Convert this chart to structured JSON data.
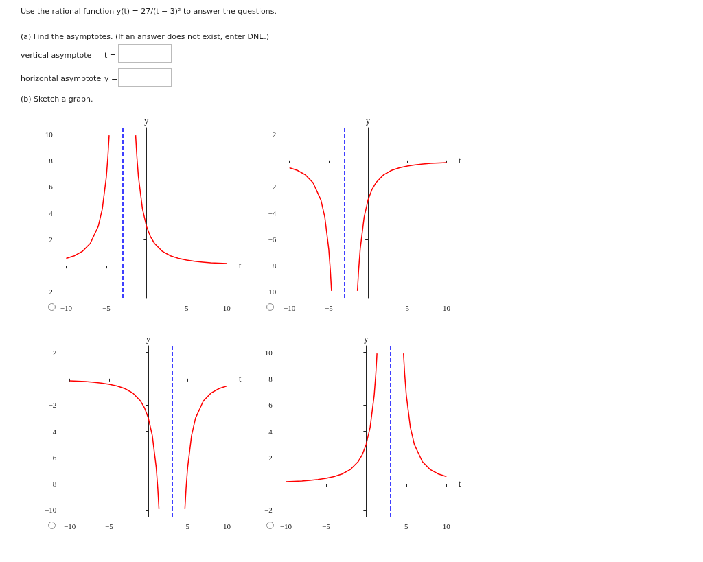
{
  "chart_data": [
    {
      "type": "other",
      "title": "Use the rational function y(t) = 27/(t − 3)² to answer the questions.",
      "annotations": [
        "(a) Find the asymptotes. (If an answer does not exist, enter DNE.)",
        "vertical asymptote",
        "t =",
        "horizontal asymptote",
        "y =",
        "(b) Sketch a graph."
      ]
    },
    {
      "type": "line",
      "xlabel": "t",
      "ylabel": "y",
      "xlim": [
        -11,
        11
      ],
      "ylim": [
        -2.5,
        10.5
      ],
      "xticks": [
        -10,
        -5,
        5,
        10
      ],
      "yticks": [
        -2,
        2,
        4,
        6,
        8,
        10
      ],
      "marker": "none",
      "grid": false,
      "x": [
        -10,
        -9,
        -8,
        -7,
        -6,
        -5.5,
        -5,
        -4.8,
        -4.65,
        -3,
        -1.35,
        -1.2,
        -1,
        -0.5,
        0,
        0.5,
        1,
        2,
        3,
        4,
        5,
        6,
        7,
        8,
        9,
        10
      ],
      "series": [
        {
          "color": "#ff0000",
          "values": [
            0.55,
            0.75,
            1.08,
            1.69,
            3,
            4.32,
            6.75,
            8.33,
            9.92,
            null,
            9.92,
            8.33,
            6.75,
            4.32,
            3,
            2.2,
            1.69,
            1.08,
            0.75,
            0.55,
            0.42,
            0.33,
            0.27,
            0.22,
            0.19,
            0.16
          ]
        }
      ],
      "ref_lines": [
        {
          "axis": "x",
          "value": -3,
          "color": "#0000ff",
          "line_style": "dashed"
        }
      ]
    },
    {
      "type": "line",
      "xlabel": "t",
      "ylabel": "y",
      "xlim": [
        -11,
        11
      ],
      "ylim": [
        -10.5,
        2.5
      ],
      "xticks": [
        -10,
        -5,
        5,
        10
      ],
      "yticks": [
        -10,
        -8,
        -6,
        -4,
        -2,
        2
      ],
      "marker": "none",
      "grid": false,
      "x": [
        -10,
        -9,
        -8,
        -7,
        -6,
        -5.5,
        -5,
        -4.8,
        -4.65,
        -3,
        -1.35,
        -1.2,
        -1,
        -0.5,
        0,
        0.5,
        1,
        2,
        3,
        4,
        5,
        6,
        7,
        8,
        9,
        10
      ],
      "series": [
        {
          "color": "#ff0000",
          "values": [
            -0.55,
            -0.75,
            -1.08,
            -1.69,
            -3,
            -4.32,
            -6.75,
            -8.33,
            -9.92,
            null,
            -9.92,
            -8.33,
            -6.75,
            -4.32,
            -3,
            -2.2,
            -1.69,
            -1.08,
            -0.75,
            -0.55,
            -0.42,
            -0.33,
            -0.27,
            -0.22,
            -0.19,
            -0.16
          ]
        }
      ],
      "ref_lines": [
        {
          "axis": "x",
          "value": -3,
          "color": "#0000ff",
          "line_style": "dashed"
        }
      ]
    },
    {
      "type": "line",
      "xlabel": "t",
      "ylabel": "y",
      "xlim": [
        -11,
        11
      ],
      "ylim": [
        -10.5,
        2.5
      ],
      "xticks": [
        -10,
        -5,
        5,
        10
      ],
      "yticks": [
        -10,
        -8,
        -6,
        -4,
        -2,
        2
      ],
      "marker": "none",
      "grid": false,
      "x": [
        -10,
        -9,
        -8,
        -7,
        -6,
        -5,
        -4,
        -3,
        -2,
        -1,
        -0.5,
        0,
        0.5,
        1,
        1.2,
        1.35,
        3,
        4.65,
        4.8,
        5,
        5.5,
        6,
        7,
        8,
        9,
        10
      ],
      "series": [
        {
          "color": "#ff0000",
          "values": [
            -0.16,
            -0.19,
            -0.22,
            -0.27,
            -0.33,
            -0.42,
            -0.55,
            -0.75,
            -1.08,
            -1.69,
            -2.2,
            -3,
            -4.32,
            -6.75,
            -8.33,
            -9.92,
            null,
            -9.92,
            -8.33,
            -6.75,
            -4.32,
            -3,
            -1.69,
            -1.08,
            -0.75,
            -0.55
          ]
        }
      ],
      "ref_lines": [
        {
          "axis": "x",
          "value": 3,
          "color": "#0000ff",
          "line_style": "dashed"
        }
      ]
    },
    {
      "type": "line",
      "xlabel": "t",
      "ylabel": "y",
      "xlim": [
        -11,
        11
      ],
      "ylim": [
        -2.5,
        10.5
      ],
      "xticks": [
        -10,
        -5,
        5,
        10
      ],
      "yticks": [
        -2,
        2,
        4,
        6,
        8,
        10
      ],
      "marker": "none",
      "grid": false,
      "x": [
        -10,
        -9,
        -8,
        -7,
        -6,
        -5,
        -4,
        -3,
        -2,
        -1,
        -0.5,
        0,
        0.5,
        1,
        1.2,
        1.35,
        3,
        4.65,
        4.8,
        5,
        5.5,
        6,
        7,
        8,
        9,
        10
      ],
      "series": [
        {
          "color": "#ff0000",
          "values": [
            0.16,
            0.19,
            0.22,
            0.27,
            0.33,
            0.42,
            0.55,
            0.75,
            1.08,
            1.69,
            2.2,
            3,
            4.32,
            6.75,
            8.33,
            9.92,
            null,
            9.92,
            8.33,
            6.75,
            4.32,
            3,
            1.69,
            1.08,
            0.75,
            0.55
          ]
        }
      ],
      "ref_lines": [
        {
          "axis": "x",
          "value": 3,
          "color": "#0000ff",
          "line_style": "dashed"
        }
      ]
    }
  ]
}
